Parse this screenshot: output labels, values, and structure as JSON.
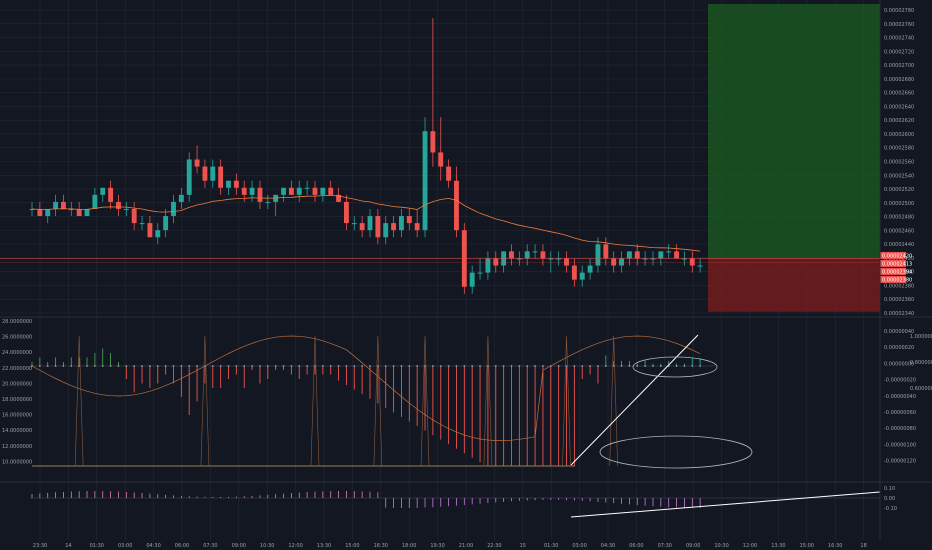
{
  "chart_data": {
    "type": "candlestick",
    "instrument_note": "",
    "time_axis": {
      "labels": [
        "23:30",
        "14",
        "01:30",
        "03:00",
        "04:30",
        "06:00",
        "07:30",
        "09:00",
        "10:30",
        "12:00",
        "13:30",
        "15:00",
        "16:30",
        "18:00",
        "19:30",
        "21:00",
        "22:30",
        "15",
        "01:30",
        "03:00",
        "04:30",
        "06:00",
        "07:30",
        "09:00",
        "10:30",
        "12:00",
        "13:30",
        "15:00",
        "16:30",
        "18"
      ]
    },
    "price_axis": {
      "labels": [
        "0.00002780",
        "0.00002760",
        "0.00002740",
        "0.00002720",
        "0.00002700",
        "0.00002680",
        "0.00002660",
        "0.00002640",
        "0.00002620",
        "0.00002600",
        "0.00002580",
        "0.00002560",
        "0.00002540",
        "0.00002520",
        "0.00002500",
        "0.00002480",
        "0.00002460",
        "0.00002440",
        "0.00002420",
        "0.00002400",
        "0.00002380",
        "0.00002360",
        "0.00002340"
      ],
      "range": [
        2.34e-05,
        2.78e-05
      ],
      "current_price": "0.00002420",
      "tags": [
        {
          "text": "0.00002420",
          "color": "#ef5350"
        },
        {
          "text": "0.00002413",
          "color": "#ef5350"
        },
        {
          "text": "0.00002394",
          "color": "#ef5350"
        },
        {
          "text": "0.00002380",
          "color": "#ef5350"
        }
      ]
    },
    "candles": [
      [
        2.49e-05,
        2.5e-05,
        2.48e-05,
        2.49e-05
      ],
      [
        2.49e-05,
        2.5e-05,
        2.48e-05,
        2.48e-05
      ],
      [
        2.48e-05,
        2.49e-05,
        2.47e-05,
        2.49e-05
      ],
      [
        2.49e-05,
        2.51e-05,
        2.48e-05,
        2.5e-05
      ],
      [
        2.5e-05,
        2.51e-05,
        2.49e-05,
        2.49e-05
      ],
      [
        2.49e-05,
        2.5e-05,
        2.48e-05,
        2.49e-05
      ],
      [
        2.49e-05,
        2.5e-05,
        2.48e-05,
        2.48e-05
      ],
      [
        2.48e-05,
        2.49e-05,
        2.48e-05,
        2.49e-05
      ],
      [
        2.49e-05,
        2.52e-05,
        2.49e-05,
        2.51e-05
      ],
      [
        2.51e-05,
        2.52e-05,
        2.5e-05,
        2.52e-05
      ],
      [
        2.52e-05,
        2.53e-05,
        2.49e-05,
        2.5e-05
      ],
      [
        2.5e-05,
        2.51e-05,
        2.48e-05,
        2.49e-05
      ],
      [
        2.49e-05,
        2.5e-05,
        2.48e-05,
        2.49e-05
      ],
      [
        2.49e-05,
        2.5e-05,
        2.46e-05,
        2.47e-05
      ],
      [
        2.47e-05,
        2.48e-05,
        2.46e-05,
        2.47e-05
      ],
      [
        2.47e-05,
        2.48e-05,
        2.45e-05,
        2.45e-05
      ],
      [
        2.45e-05,
        2.47e-05,
        2.44e-05,
        2.46e-05
      ],
      [
        2.46e-05,
        2.49e-05,
        2.45e-05,
        2.48e-05
      ],
      [
        2.48e-05,
        2.51e-05,
        2.47e-05,
        2.5e-05
      ],
      [
        2.5e-05,
        2.52e-05,
        2.49e-05,
        2.51e-05
      ],
      [
        2.51e-05,
        2.57e-05,
        2.5e-05,
        2.56e-05
      ],
      [
        2.56e-05,
        2.58e-05,
        2.54e-05,
        2.55e-05
      ],
      [
        2.55e-05,
        2.56e-05,
        2.52e-05,
        2.53e-05
      ],
      [
        2.53e-05,
        2.56e-05,
        2.52e-05,
        2.55e-05
      ],
      [
        2.55e-05,
        2.56e-05,
        2.51e-05,
        2.52e-05
      ],
      [
        2.52e-05,
        2.53e-05,
        2.51e-05,
        2.53e-05
      ],
      [
        2.53e-05,
        2.54e-05,
        2.51e-05,
        2.52e-05
      ],
      [
        2.52e-05,
        2.53e-05,
        2.5e-05,
        2.51e-05
      ],
      [
        2.51e-05,
        2.53e-05,
        2.5e-05,
        2.52e-05
      ],
      [
        2.52e-05,
        2.53e-05,
        2.49e-05,
        2.5e-05
      ],
      [
        2.5e-05,
        2.51e-05,
        2.49e-05,
        2.5e-05
      ],
      [
        2.5e-05,
        2.51e-05,
        2.48e-05,
        2.51e-05
      ],
      [
        2.51e-05,
        2.52e-05,
        2.5e-05,
        2.52e-05
      ],
      [
        2.52e-05,
        2.53e-05,
        2.51e-05,
        2.51e-05
      ],
      [
        2.51e-05,
        2.53e-05,
        2.5e-05,
        2.52e-05
      ],
      [
        2.52e-05,
        2.53e-05,
        2.51e-05,
        2.52e-05
      ],
      [
        2.52e-05,
        2.53e-05,
        2.5e-05,
        2.51e-05
      ],
      [
        2.51e-05,
        2.52e-05,
        2.5e-05,
        2.52e-05
      ],
      [
        2.52e-05,
        2.53e-05,
        2.51e-05,
        2.51e-05
      ],
      [
        2.51e-05,
        2.52e-05,
        2.5e-05,
        2.5e-05
      ],
      [
        2.5e-05,
        2.51e-05,
        2.46e-05,
        2.47e-05
      ],
      [
        2.47e-05,
        2.48e-05,
        2.46e-05,
        2.47e-05
      ],
      [
        2.47e-05,
        2.48e-05,
        2.45e-05,
        2.46e-05
      ],
      [
        2.46e-05,
        2.49e-05,
        2.45e-05,
        2.48e-05
      ],
      [
        2.48e-05,
        2.49e-05,
        2.44e-05,
        2.45e-05
      ],
      [
        2.45e-05,
        2.48e-05,
        2.44e-05,
        2.47e-05
      ],
      [
        2.47e-05,
        2.48e-05,
        2.45e-05,
        2.46e-05
      ],
      [
        2.46e-05,
        2.49e-05,
        2.45e-05,
        2.48e-05
      ],
      [
        2.48e-05,
        2.49e-05,
        2.46e-05,
        2.47e-05
      ],
      [
        2.47e-05,
        2.49e-05,
        2.45e-05,
        2.46e-05
      ],
      [
        2.46e-05,
        2.62e-05,
        2.45e-05,
        2.6e-05
      ],
      [
        2.6e-05,
        2.76e-05,
        2.55e-05,
        2.57e-05
      ],
      [
        2.57e-05,
        2.62e-05,
        2.53e-05,
        2.55e-05
      ],
      [
        2.55e-05,
        2.56e-05,
        2.52e-05,
        2.53e-05
      ],
      [
        2.53e-05,
        2.55e-05,
        2.45e-05,
        2.46e-05
      ],
      [
        2.46e-05,
        2.47e-05,
        2.37e-05,
        2.38e-05
      ],
      [
        2.38e-05,
        2.41e-05,
        2.37e-05,
        2.4e-05
      ],
      [
        2.4e-05,
        2.42e-05,
        2.39e-05,
        2.4e-05
      ],
      [
        2.4e-05,
        2.43e-05,
        2.39e-05,
        2.42e-05
      ],
      [
        2.42e-05,
        2.43e-05,
        2.4e-05,
        2.41e-05
      ],
      [
        2.41e-05,
        2.43e-05,
        2.4e-05,
        2.43e-05
      ],
      [
        2.43e-05,
        2.44e-05,
        2.41e-05,
        2.42e-05
      ],
      [
        2.42e-05,
        2.43e-05,
        2.41e-05,
        2.42e-05
      ],
      [
        2.42e-05,
        2.44e-05,
        2.41e-05,
        2.43e-05
      ],
      [
        2.43e-05,
        2.44e-05,
        2.42e-05,
        2.43e-05
      ],
      [
        2.43e-05,
        2.44e-05,
        2.41e-05,
        2.42e-05
      ],
      [
        2.42e-05,
        2.43e-05,
        2.4e-05,
        2.42e-05
      ],
      [
        2.42e-05,
        2.43e-05,
        2.41e-05,
        2.42e-05
      ],
      [
        2.42e-05,
        2.43e-05,
        2.4e-05,
        2.41e-05
      ],
      [
        2.41e-05,
        2.42e-05,
        2.38e-05,
        2.39e-05
      ],
      [
        2.39e-05,
        2.41e-05,
        2.38e-05,
        2.4e-05
      ],
      [
        2.4e-05,
        2.42e-05,
        2.39e-05,
        2.41e-05
      ],
      [
        2.41e-05,
        2.45e-05,
        2.4e-05,
        2.44e-05
      ],
      [
        2.44e-05,
        2.45e-05,
        2.41e-05,
        2.42e-05
      ],
      [
        2.42e-05,
        2.43e-05,
        2.4e-05,
        2.41e-05
      ],
      [
        2.41e-05,
        2.43e-05,
        2.4e-05,
        2.42e-05
      ],
      [
        2.42e-05,
        2.43e-05,
        2.41e-05,
        2.43e-05
      ],
      [
        2.43e-05,
        2.44e-05,
        2.41e-05,
        2.42e-05
      ],
      [
        2.42e-05,
        2.43e-05,
        2.41e-05,
        2.42e-05
      ],
      [
        2.42e-05,
        2.43e-05,
        2.41e-05,
        2.42e-05
      ],
      [
        2.42e-05,
        2.43e-05,
        2.41e-05,
        2.43e-05
      ],
      [
        2.43e-05,
        2.44e-05,
        2.42e-05,
        2.43e-05
      ],
      [
        2.43e-05,
        2.44e-05,
        2.42e-05,
        2.42e-05
      ],
      [
        2.42e-05,
        2.43e-05,
        2.41e-05,
        2.42e-05
      ],
      [
        2.42e-05,
        2.43e-05,
        2.4e-05,
        2.41e-05
      ],
      [
        2.41e-05,
        2.42e-05,
        2.4e-05,
        2.41e-05
      ]
    ],
    "moving_average_color": "#f57c3a",
    "position_zone": {
      "entry": 2.42e-05,
      "target": 2.78e-05,
      "stop": 2.37e-05,
      "profit_color": "#1b5e20",
      "loss_color": "#7f1d1d"
    },
    "oscillator": {
      "left_labels": [
        "28.0000000",
        "26.0000000",
        "24.0000000",
        "22.0000000",
        "20.0000000",
        "18.0000000",
        "16.0000000",
        "14.0000000",
        "12.0000000",
        "10.0000000"
      ],
      "right_labels": [
        "0.00000040",
        "0.00000020",
        "0.00000000",
        "-0.00000020",
        "-0.00000040",
        "-0.00000060",
        "-0.00000080",
        "-0.00000100",
        "-0.00000120"
      ],
      "outer_right_labels": [
        "1.0000000",
        "0.8000000",
        "0.6000000"
      ]
    },
    "momentum": {
      "right_labels": [
        "0.10",
        "0.00",
        "-0.10"
      ]
    },
    "colors": {
      "background": "#131722",
      "grid": "#232836",
      "up": "#26a69a",
      "down": "#ef5350",
      "drawing": "#ffffff"
    },
    "grid": true
  }
}
